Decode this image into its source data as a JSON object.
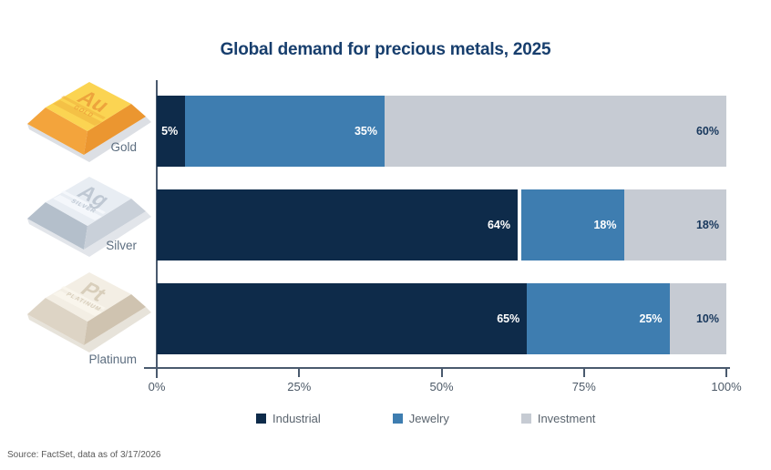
{
  "title": "Global demand for precious metals, 2025",
  "source": "Source: FactSet, data as of 3/17/2026",
  "colors": {
    "title": "#173e6d",
    "industrial": "#0e2b4a",
    "jewelry": "#3e7db0",
    "investment": "#c6cbd3",
    "axis": "#4a5a6e",
    "tick_label": "#4d5a68",
    "legend_label": "#5a646e",
    "metal_label": "#5d6e80",
    "bar_label_light": "#ffffff",
    "bar_label_dark": "#17375c"
  },
  "chart_data": {
    "type": "bar",
    "stacked": true,
    "orientation": "horizontal",
    "title": "Global demand for precious metals, 2025",
    "categories": [
      "Gold",
      "Silver",
      "Platinum"
    ],
    "series": [
      {
        "name": "Industrial",
        "color": "#0e2b4a",
        "values": [
          5,
          64,
          65
        ]
      },
      {
        "name": "Jewelry",
        "color": "#3e7db0",
        "values": [
          35,
          18,
          25
        ]
      },
      {
        "name": "Investment",
        "color": "#c6cbd3",
        "values": [
          60,
          18,
          10
        ]
      }
    ],
    "data_labels": [
      [
        "5%",
        "35%",
        "60%"
      ],
      [
        "64%",
        "18%",
        "18%"
      ],
      [
        "65%",
        "25%",
        "10%"
      ]
    ],
    "x_ticks": [
      "0%",
      "25%",
      "50%",
      "75%",
      "100%"
    ],
    "xlim": [
      0,
      100
    ],
    "grid": false,
    "legend": [
      "Industrial",
      "Jewelry",
      "Investment"
    ],
    "legend_position": "bottom",
    "segment_gap": {
      "category": "Silver",
      "after_series": "Industrial"
    }
  },
  "metals": [
    {
      "label": "Gold",
      "symbol": "Au",
      "engraving": "GOLD"
    },
    {
      "label": "Silver",
      "symbol": "Ag",
      "engraving": "SILVER"
    },
    {
      "label": "Platinum",
      "symbol": "Pt",
      "engraving": "PLATINUM"
    }
  ]
}
